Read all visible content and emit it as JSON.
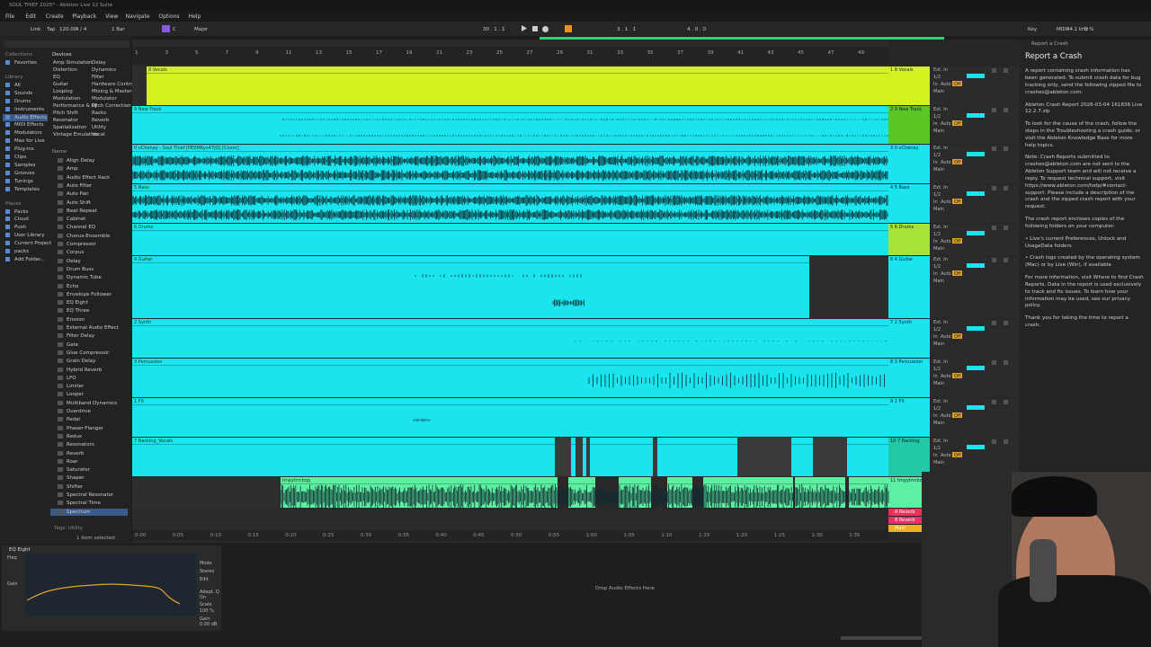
{
  "window": {
    "title": "SOUL THIEF 2025* - Ableton Live 12 Suite"
  },
  "menu": [
    "File",
    "Edit",
    "Create",
    "Playback",
    "View",
    "Navigate",
    "Options",
    "Help"
  ],
  "control_bar": {
    "left": [
      "Link",
      "Tap",
      "120.00",
      "4 / 4",
      "1 Bar",
      "C",
      "Major"
    ],
    "center": [
      "30 . 1 . 1",
      "3 . 1 . 1",
      "4 . 0 . 0"
    ],
    "right": [
      "Key",
      "MIDI",
      "44.1 kHz",
      "0 %"
    ]
  },
  "browser": {
    "sections": [
      {
        "title": "Collections",
        "items": [
          "Favorites"
        ]
      },
      {
        "title": "Library",
        "items": [
          "All",
          "Sounds",
          "Drums",
          "Instruments",
          "Audio Effects",
          "MIDI Effects",
          "Modulators",
          "Max for Live",
          "Plug-ins",
          "Clips",
          "Samples",
          "Grooves",
          "Tunings",
          "Templates"
        ]
      },
      {
        "title": "Places",
        "items": [
          "Packs",
          "Cloud",
          "Push",
          "User Library",
          "Current Project",
          "packs",
          "Add Folder..."
        ]
      }
    ],
    "devices_title": "Devices",
    "devices": [
      "Amp Simulation",
      "Delay",
      "Distortion",
      "Dynamics",
      "EQ",
      "Filter",
      "Guitar",
      "Hardware Control",
      "Looping",
      "Mixing & Mastering",
      "Modulation",
      "Modulator",
      "Performance & DJ",
      "Pitch Correction",
      "Pitch Shift",
      "Racks",
      "Resonator",
      "Reverb",
      "Spatialization",
      "Utility",
      "Vintage Emulation",
      "Vocal"
    ],
    "name_header": "Name",
    "names": [
      "Align Delay",
      "Amp",
      "Audio Effect Rack",
      "Auto Filter",
      "Auto Pan",
      "Auto Shift",
      "Beat Repeat",
      "Cabinet",
      "Channel EQ",
      "Chorus-Ensemble",
      "Compressor",
      "Corpus",
      "Delay",
      "Drum Buss",
      "Dynamic Tube",
      "Echo",
      "Envelope Follower",
      "EQ Eight",
      "EQ Three",
      "Erosion",
      "External Audio Effect",
      "Filter Delay",
      "Gate",
      "Glue Compressor",
      "Grain Delay",
      "Hybrid Reverb",
      "LFO",
      "Limiter",
      "Looper",
      "Multiband Dynamics",
      "Overdrive",
      "Pedal",
      "Phaser-Flanger",
      "Redux",
      "Resonators",
      "Reverb",
      "Roar",
      "Saturator",
      "Shaper",
      "Shifter",
      "Spectral Resonator",
      "Spectral Time",
      "Spectrum"
    ],
    "tags": "Tags: Utility",
    "status": "1 Item selected"
  },
  "ruler": {
    "bars": [
      "1",
      "3",
      "5",
      "7",
      "9",
      "11",
      "13",
      "15",
      "17",
      "19",
      "21",
      "23",
      "25",
      "27",
      "29",
      "31",
      "33",
      "35",
      "37",
      "39",
      "41",
      "43",
      "45",
      "47",
      "49"
    ],
    "times": [
      "0:00",
      "0:05",
      "0:10",
      "0:15",
      "0:20",
      "0:25",
      "0:30",
      "0:35",
      "0:40",
      "0:45",
      "0:50",
      "0:55",
      "1:00",
      "1:05",
      "1:10",
      "1:15",
      "1:20",
      "1:25",
      "1:30",
      "1:35"
    ]
  },
  "tracks": [
    {
      "name": "8 Vocals",
      "color": "#d4f01e"
    },
    {
      "name": "9 New Track",
      "color": "#1ae4ee"
    },
    {
      "name": "0 vChenay - Soul Thief [PE5MRyx47jQ] [Cover]",
      "color": "#1ae4ee"
    },
    {
      "name": "5 Bass",
      "color": "#1ae4ee"
    },
    {
      "name": "6 Drums",
      "color": "#1ae4ee"
    },
    {
      "name": "4 Guitar",
      "color": "#1ae4ee"
    },
    {
      "name": "2 Synth",
      "color": "#1ae4ee"
    },
    {
      "name": "3 Percussion",
      "color": "#1ae4ee"
    },
    {
      "name": "1 FX",
      "color": "#1ae4ee"
    },
    {
      "name": "7 Backing_Vocals",
      "color": "#1ae4ee"
    },
    {
      "name": "tmpytrrcbqq",
      "color": "#5ef0a2"
    }
  ],
  "mixer": [
    {
      "name": "1 8 Vocals",
      "color": "#d4f01e"
    },
    {
      "name": "2 9 New Track",
      "color": "#5cc626"
    },
    {
      "name": "3 0 vChenay",
      "color": "#1ae4ee"
    },
    {
      "name": "4 5 Bass",
      "color": "#1ae4ee"
    },
    {
      "name": "5 6 Drums",
      "color": "#a8e236"
    },
    {
      "name": "6 4 Guitar",
      "color": "#1ae4ee"
    },
    {
      "name": "7 2 Synth",
      "color": "#1ae4ee"
    },
    {
      "name": "8 3 Percussion",
      "color": "#1ae4ee"
    },
    {
      "name": "9 1 FX",
      "color": "#1ae4ee"
    },
    {
      "name": "10 7 Backing",
      "color": "#22c8a8"
    },
    {
      "name": "11 tmpytrrcbqq",
      "color": "#5ef0a2"
    }
  ],
  "io_labels": [
    "Ext. In",
    "1/2",
    "In",
    "Auto",
    "Off",
    "Main"
  ],
  "returns": [
    {
      "name": "A Reverb",
      "color": "#f0305a"
    },
    {
      "name": "B Reverb",
      "color": "#e8306a"
    },
    {
      "name": "Main",
      "color": "#f0b020"
    }
  ],
  "help": {
    "header": "Report a Crash",
    "title": "Report a Crash",
    "paragraphs": [
      "A report containing crash information has been generated. To submit crash data for bug tracking only, send the following zipped file to crashes@ableton.com:",
      "Ableton Crash Report 2026-03-04 161836 Live 12.2.7.zip",
      "To look for the cause of the crash, follow the steps in the Troubleshooting a crash guide, or visit the Ableton Knowledge Base for more help topics.",
      "Note: Crash Reports submitted to crashes@ableton.com are not sent to the Ableton Support team and will not receive a reply. To request technical support, visit https://www.ableton.com/help/#contact-support. Please include a description of the crash and the zipped crash report with your request.",
      "The crash report encloses copies of the following folders on your computer:",
      "• Live's current Preferences, Unlock and UsageData folders",
      "• Crash logs created by the operating system (Mac) or by Live (Win), if available",
      "For more information, visit Where to find Crash Reports. Data in the report is used exclusively to track and fix issues. To learn how your information may be used, see our privacy policy.",
      "Thank you for taking the time to report a crash."
    ]
  },
  "device": {
    "name": "EQ Eight",
    "labels": [
      "Freq",
      "Gain",
      "Mode",
      "Stereo",
      "Edit",
      "Adapt. Q",
      "On",
      "Scale",
      "100 %",
      "Gain",
      "0.00 dB"
    ],
    "drop_hint": "Drop Audio Effects Here"
  }
}
